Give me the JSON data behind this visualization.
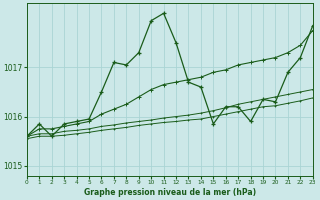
{
  "title": "Graphe pression niveau de la mer (hPa)",
  "background_color": "#cce8e8",
  "grid_color": "#aad4d4",
  "line_color": "#1a5c1a",
  "xlim": [
    0,
    23
  ],
  "ylim": [
    1014.8,
    1018.3
  ],
  "yticks": [
    1015,
    1016,
    1017
  ],
  "series1_volatile": [
    1015.6,
    1015.85,
    1015.6,
    1015.85,
    1015.9,
    1015.95,
    1016.5,
    1017.1,
    1017.05,
    1017.3,
    1017.95,
    1018.1,
    1017.5,
    1016.7,
    1016.6,
    1015.85,
    1016.2,
    1016.2,
    1015.9,
    1016.35,
    1016.3,
    1016.9,
    1017.2,
    1017.85
  ],
  "series2_upper_trend": [
    1015.6,
    1015.75,
    1015.75,
    1015.8,
    1015.85,
    1015.9,
    1016.05,
    1016.15,
    1016.25,
    1016.4,
    1016.55,
    1016.65,
    1016.7,
    1016.75,
    1016.8,
    1016.9,
    1016.95,
    1017.05,
    1017.1,
    1017.15,
    1017.2,
    1017.3,
    1017.45,
    1017.75
  ],
  "series3_mid_trend": [
    1015.6,
    1015.65,
    1015.65,
    1015.7,
    1015.72,
    1015.75,
    1015.8,
    1015.83,
    1015.87,
    1015.9,
    1015.93,
    1015.97,
    1016.0,
    1016.03,
    1016.07,
    1016.12,
    1016.18,
    1016.25,
    1016.3,
    1016.35,
    1016.4,
    1016.45,
    1016.5,
    1016.55
  ],
  "series4_low_trend": [
    1015.55,
    1015.6,
    1015.6,
    1015.62,
    1015.65,
    1015.68,
    1015.72,
    1015.75,
    1015.78,
    1015.82,
    1015.85,
    1015.88,
    1015.9,
    1015.93,
    1015.95,
    1016.0,
    1016.05,
    1016.1,
    1016.15,
    1016.2,
    1016.22,
    1016.27,
    1016.32,
    1016.38
  ]
}
